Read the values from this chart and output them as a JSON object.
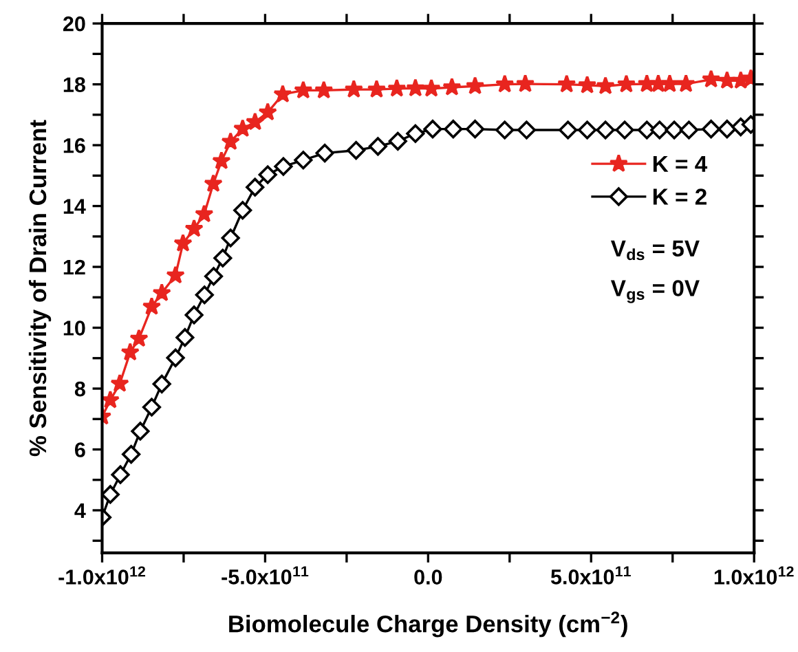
{
  "chart_data": {
    "type": "line",
    "xlabel": "Biomolecule Charge Density (cm$^{−2}$)",
    "ylabel": "% Sensitivity of Drain Current",
    "xlim": [
      -1000000000000.0,
      1000000000000.0
    ],
    "xticks": [
      {
        "value": -1000000000000.0,
        "label": "-1.0x10$^{12}$"
      },
      {
        "value": -750000000000.0,
        "label": null
      },
      {
        "value": -500000000000.0,
        "label": "-5.0x10$^{11}$"
      },
      {
        "value": -250000000000.0,
        "label": null
      },
      {
        "value": 0,
        "label": "0.0"
      },
      {
        "value": 250000000000.0,
        "label": null
      },
      {
        "value": 500000000000.0,
        "label": "5.0x10$^{11}$"
      },
      {
        "value": 750000000000.0,
        "label": null
      },
      {
        "value": 1000000000000.0,
        "label": "1.0x10$^{12}$"
      }
    ],
    "ylim": [
      2.6,
      20
    ],
    "yticks": [
      {
        "value": 3,
        "label": null
      },
      4,
      {
        "value": 5,
        "label": null
      },
      6,
      {
        "value": 7,
        "label": null
      },
      8,
      {
        "value": 9,
        "label": null
      },
      10,
      {
        "value": 11,
        "label": null
      },
      12,
      {
        "value": 13,
        "label": null
      },
      14,
      {
        "value": 15,
        "label": null
      },
      16,
      {
        "value": 17,
        "label": null
      },
      18,
      {
        "value": 19,
        "label": null
      },
      20
    ],
    "grid": false,
    "legend": "right",
    "line_style": "solid",
    "annotations": [
      "V$_{ds}$ = 5V",
      "V$_{gs}$ = 0V"
    ],
    "series": [
      {
        "name": "K = 4",
        "color": "#e8251f",
        "marker": "star",
        "x": [
          -1000000000000.0,
          -975000000000.0,
          -946000000000.0,
          -914000000000.0,
          -887000000000.0,
          -848000000000.0,
          -817000000000.0,
          -775000000000.0,
          -752000000000.0,
          -718000000000.0,
          -687000000000.0,
          -659000000000.0,
          -634000000000.0,
          -606000000000.0,
          -569000000000.0,
          -531000000000.0,
          -492000000000.0,
          -446000000000.0,
          -383000000000.0,
          -320000000000.0,
          -228000000000.0,
          -158000000000.0,
          -96000000000.0,
          -39000000000.0,
          10000000000.0,
          73000000000.0,
          144000000000.0,
          235000000000.0,
          298000000000.0,
          425000000000.0,
          488000000000.0,
          544000000000.0,
          608000000000.0,
          671000000000.0,
          706000000000.0,
          741000000000.0,
          791000000000.0,
          868000000000.0,
          917000000000.0,
          959000000000.0,
          990000000000.0
        ],
        "values": [
          7.08,
          7.62,
          8.16,
          9.19,
          9.64,
          10.69,
          11.14,
          11.72,
          12.77,
          13.25,
          13.73,
          14.73,
          15.48,
          16.11,
          16.54,
          16.76,
          17.08,
          17.67,
          17.8,
          17.8,
          17.83,
          17.83,
          17.86,
          17.87,
          17.86,
          17.9,
          17.94,
          18.0,
          18.01,
          18.0,
          17.97,
          17.94,
          18.0,
          18.01,
          18.01,
          18.01,
          18.01,
          18.16,
          18.12,
          18.12,
          18.19
        ]
      },
      {
        "name": "K = 2",
        "color": "#000000",
        "marker": "diamond",
        "x": [
          -1000000000000.0,
          -975000000000.0,
          -944000000000.0,
          -911000000000.0,
          -883000000000.0,
          -848000000000.0,
          -817000000000.0,
          -775000000000.0,
          -746000000000.0,
          -718000000000.0,
          -686000000000.0,
          -658000000000.0,
          -630000000000.0,
          -606000000000.0,
          -569000000000.0,
          -531000000000.0,
          -492000000000.0,
          -444000000000.0,
          -383000000000.0,
          -317000000000.0,
          -221000000000.0,
          -154000000000.0,
          -93000000000.0,
          -39000000000.0,
          14000000000.0,
          77000000000.0,
          144000000000.0,
          235000000000.0,
          302000000000.0,
          429000000000.0,
          488000000000.0,
          544000000000.0,
          603000000000.0,
          671000000000.0,
          710000000000.0,
          755000000000.0,
          800000000000.0,
          868000000000.0,
          917000000000.0,
          959000000000.0,
          990000000000.0
        ],
        "values": [
          3.77,
          4.52,
          5.17,
          5.84,
          6.6,
          7.39,
          8.15,
          9.01,
          9.68,
          10.42,
          11.08,
          11.69,
          12.29,
          12.95,
          13.86,
          14.62,
          15.03,
          15.3,
          15.51,
          15.74,
          15.83,
          15.96,
          16.13,
          16.38,
          16.53,
          16.53,
          16.53,
          16.5,
          16.5,
          16.5,
          16.5,
          16.5,
          16.5,
          16.5,
          16.5,
          16.5,
          16.5,
          16.53,
          16.53,
          16.6,
          16.68
        ]
      }
    ]
  }
}
